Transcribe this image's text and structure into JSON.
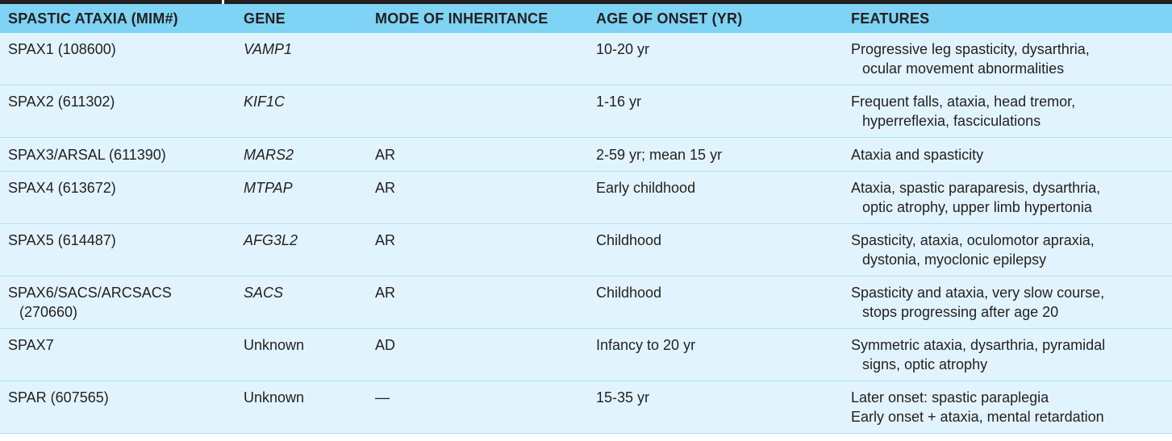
{
  "colors": {
    "header_bg": "#7fd3f4",
    "row_bg": "#e1f4fd",
    "row_border": "#a8dff6",
    "text": "#231f20"
  },
  "table": {
    "headers": {
      "ataxia": "SPASTIC ATAXIA (MIM#)",
      "gene": "GENE",
      "inheritance": "MODE OF INHERITANCE",
      "onset": "AGE OF ONSET (YR)",
      "features": "FEATURES"
    },
    "rows": [
      {
        "ataxia": [
          "SPAX1 (108600)"
        ],
        "gene": "VAMP1",
        "inheritance": "",
        "onset": "10-20 yr",
        "features": [
          "Progressive leg spasticity, dysarthria,",
          "ocular movement abnormalities"
        ]
      },
      {
        "ataxia": [
          "SPAX2 (611302)"
        ],
        "gene": "KIF1C",
        "inheritance": "",
        "onset": "1-16 yr",
        "features": [
          "Frequent falls, ataxia, head tremor,",
          "hyperreflexia, fasciculations"
        ]
      },
      {
        "ataxia": [
          "SPAX3/ARSAL (611390)"
        ],
        "gene": "MARS2",
        "inheritance": "AR",
        "onset": "2-59 yr; mean 15 yr",
        "features": [
          "Ataxia and spasticity"
        ]
      },
      {
        "ataxia": [
          "SPAX4 (613672)"
        ],
        "gene": "MTPAP",
        "inheritance": "AR",
        "onset": "Early childhood",
        "features": [
          "Ataxia, spastic paraparesis, dysarthria,",
          "optic atrophy, upper limb hypertonia"
        ]
      },
      {
        "ataxia": [
          "SPAX5 (614487)"
        ],
        "gene": "AFG3L2",
        "inheritance": "AR",
        "onset": "Childhood",
        "features": [
          "Spasticity, ataxia, oculomotor apraxia,",
          "dystonia, myoclonic epilepsy"
        ]
      },
      {
        "ataxia": [
          "SPAX6/SACS/ARCSACS",
          "(270660)"
        ],
        "gene": "SACS",
        "inheritance": "AR",
        "onset": "Childhood",
        "features": [
          "Spasticity and ataxia, very slow course,",
          "stops progressing after age 20"
        ]
      },
      {
        "ataxia": [
          "SPAX7"
        ],
        "gene": "Unknown",
        "inheritance": "AD",
        "onset": "Infancy to 20 yr",
        "features": [
          "Symmetric ataxia, dysarthria, pyramidal",
          "signs, optic atrophy"
        ]
      },
      {
        "ataxia": [
          "SPAR (607565)"
        ],
        "gene": "Unknown",
        "inheritance": "—",
        "onset": "15-35 yr",
        "features": [
          "Later onset: spastic paraplegia",
          "Early onset + ataxia, mental retardation"
        ]
      }
    ]
  }
}
